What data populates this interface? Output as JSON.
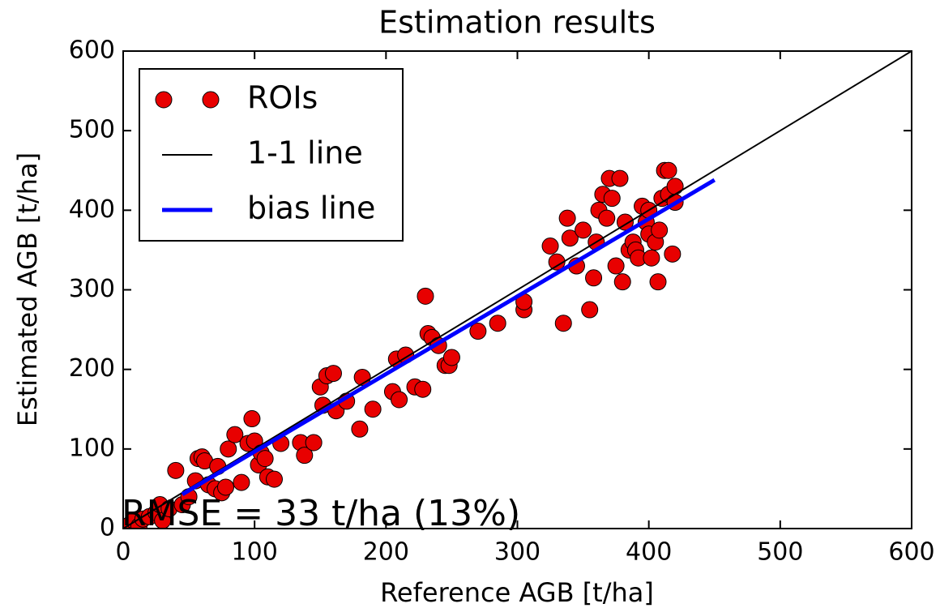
{
  "chart_data": {
    "type": "scatter",
    "title": "Estimation results",
    "x_label": "Reference AGB [t/ha]",
    "y_label": "Estimated AGB [t/ha]",
    "annotation": "RMSE = 33 t/ha (13%)",
    "xlim": [
      0,
      600
    ],
    "ylim": [
      0,
      600
    ],
    "xticks": [
      0,
      100,
      200,
      300,
      400,
      500,
      600
    ],
    "yticks": [
      0,
      100,
      200,
      300,
      400,
      500,
      600
    ],
    "legend": "upper left",
    "series": [
      {
        "name": "ROIs",
        "type": "scatter",
        "color": "#e80000",
        "x": [
          5,
          8,
          12,
          15,
          20,
          25,
          28,
          30,
          35,
          40,
          45,
          50,
          55,
          57,
          60,
          62,
          65,
          70,
          72,
          75,
          78,
          80,
          85,
          90,
          95,
          98,
          100,
          103,
          105,
          108,
          110,
          115,
          120,
          135,
          138,
          145,
          150,
          152,
          155,
          160,
          162,
          170,
          180,
          182,
          190,
          205,
          208,
          210,
          215,
          222,
          228,
          230,
          232,
          235,
          240,
          245,
          248,
          250,
          270,
          285,
          305,
          305,
          325,
          330,
          335,
          338,
          340,
          345,
          350,
          355,
          358,
          360,
          362,
          365,
          368,
          370,
          372,
          375,
          378,
          380,
          382,
          385,
          388,
          390,
          392,
          395,
          398,
          400,
          402,
          405,
          407,
          408,
          410,
          412,
          415,
          418,
          420,
          420,
          415,
          400
        ],
        "values": [
          5,
          10,
          3,
          12,
          15,
          20,
          30,
          10,
          25,
          73,
          30,
          40,
          60,
          88,
          90,
          85,
          55,
          50,
          78,
          45,
          52,
          100,
          118,
          58,
          107,
          138,
          110,
          80,
          95,
          88,
          65,
          62,
          107,
          108,
          92,
          108,
          178,
          155,
          192,
          195,
          148,
          160,
          125,
          190,
          150,
          172,
          213,
          162,
          218,
          178,
          175,
          292,
          245,
          240,
          230,
          205,
          205,
          215,
          248,
          258,
          275,
          285,
          355,
          335,
          258,
          390,
          365,
          330,
          375,
          275,
          315,
          360,
          400,
          420,
          390,
          440,
          415,
          330,
          440,
          310,
          385,
          350,
          360,
          350,
          340,
          405,
          385,
          370,
          340,
          360,
          310,
          375,
          415,
          450,
          420,
          345,
          430,
          410,
          450,
          400
        ]
      },
      {
        "name": "1-1 line",
        "type": "line",
        "color": "#000000",
        "width": 2,
        "x": [
          0,
          600
        ],
        "values": [
          0,
          600
        ]
      },
      {
        "name": "bias line",
        "type": "line",
        "color": "#0000ff",
        "width": 5,
        "x": [
          45,
          450
        ],
        "values": [
          43,
          438
        ]
      }
    ]
  }
}
